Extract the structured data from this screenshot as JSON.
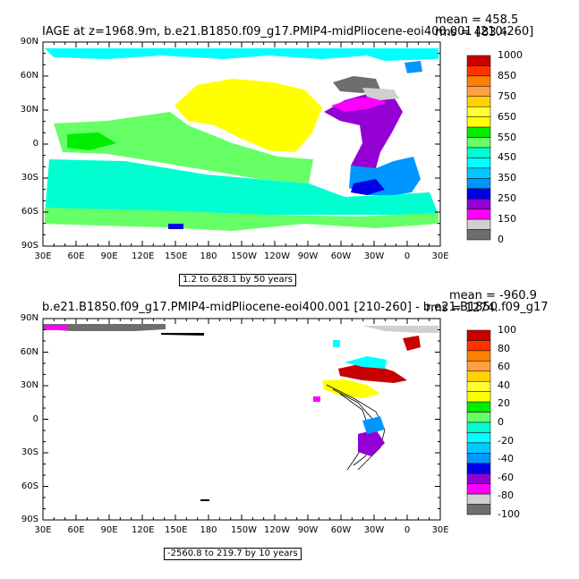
{
  "panels": [
    {
      "title": "IAGE at z=1968.9m, b.e21.B1850.f09_g17.PMIP4-midPliocene-eoi400.001 [210-260]",
      "mean_text": "mean = 458.5",
      "rms_text": "rms = 483.4",
      "contour_info": "1.2 to 628.1 by 50 years",
      "colorbar_labels": [
        "1000",
        "850",
        "750",
        "650",
        "550",
        "450",
        "350",
        "250",
        "150",
        "0"
      ],
      "colorbar_colors": [
        "#c80000",
        "#ff3300",
        "#ff8000",
        "#ffa040",
        "#ffd200",
        "#ffff32",
        "#ffff00",
        "#00ee00",
        "#66ff66",
        "#00ffd0",
        "#00ffff",
        "#00c8ff",
        "#0096ff",
        "#0000e6",
        "#9400d3",
        "#ff00ff",
        "#d0d0d0",
        "#6e6e6e"
      ]
    },
    {
      "title": "b.e21.B1850.f09_g17.PMIP4-midPliocene-eoi400.001  [210-260] - b.e21.B1850.f09_g17",
      "mean_text": "mean = -960.9",
      "rms_text": "rms = 1274.",
      "contour_info": "-2560.8 to 219.7 by 10 years",
      "colorbar_labels": [
        "100",
        "80",
        "60",
        "40",
        "20",
        "0",
        "-20",
        "-40",
        "-60",
        "-80",
        "-100"
      ],
      "colorbar_colors": [
        "#c80000",
        "#ff3300",
        "#ff8000",
        "#ffa040",
        "#ffd200",
        "#ffff32",
        "#ffff00",
        "#00ee00",
        "#66ff66",
        "#00ffd0",
        "#00ffff",
        "#00c8ff",
        "#0096ff",
        "#0000e6",
        "#9400d3",
        "#ff00ff",
        "#d0d0d0",
        "#6e6e6e"
      ]
    }
  ],
  "lat_labels": [
    "90N",
    "60N",
    "30N",
    "0",
    "30S",
    "60S",
    "90S"
  ],
  "lon_labels": [
    "30E",
    "60E",
    "90E",
    "120E",
    "150E",
    "180",
    "150W",
    "120W",
    "90W",
    "60W",
    "30W",
    "0",
    "30E"
  ]
}
